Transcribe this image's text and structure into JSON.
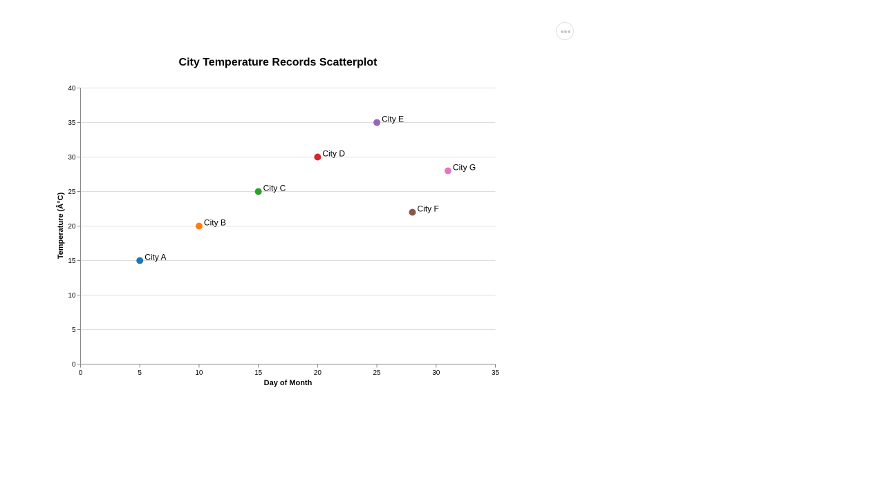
{
  "actions_menu": {
    "icon": "ellipsis-icon"
  },
  "chart_data": {
    "type": "scatter",
    "title": "City Temperature Records Scatterplot",
    "xlabel": "Day of Month",
    "ylabel": "Temperature (Â°C)",
    "xlim": [
      0,
      35
    ],
    "ylim": [
      0,
      40
    ],
    "x_ticks": [
      0,
      5,
      10,
      15,
      20,
      25,
      30,
      35
    ],
    "y_ticks": [
      0,
      5,
      10,
      15,
      20,
      25,
      30,
      35,
      40
    ],
    "grid": {
      "horizontal": true,
      "vertical": false
    },
    "points": [
      {
        "label": "City A",
        "x": 5,
        "y": 15,
        "color": "#1f77b4"
      },
      {
        "label": "City B",
        "x": 10,
        "y": 20,
        "color": "#ff7f0e"
      },
      {
        "label": "City C",
        "x": 15,
        "y": 25,
        "color": "#2ca02c"
      },
      {
        "label": "City D",
        "x": 20,
        "y": 30,
        "color": "#d62728"
      },
      {
        "label": "City E",
        "x": 25,
        "y": 35,
        "color": "#9467bd"
      },
      {
        "label": "City F",
        "x": 28,
        "y": 22,
        "color": "#8c564b"
      },
      {
        "label": "City G",
        "x": 31,
        "y": 28,
        "color": "#e377c2"
      }
    ]
  }
}
